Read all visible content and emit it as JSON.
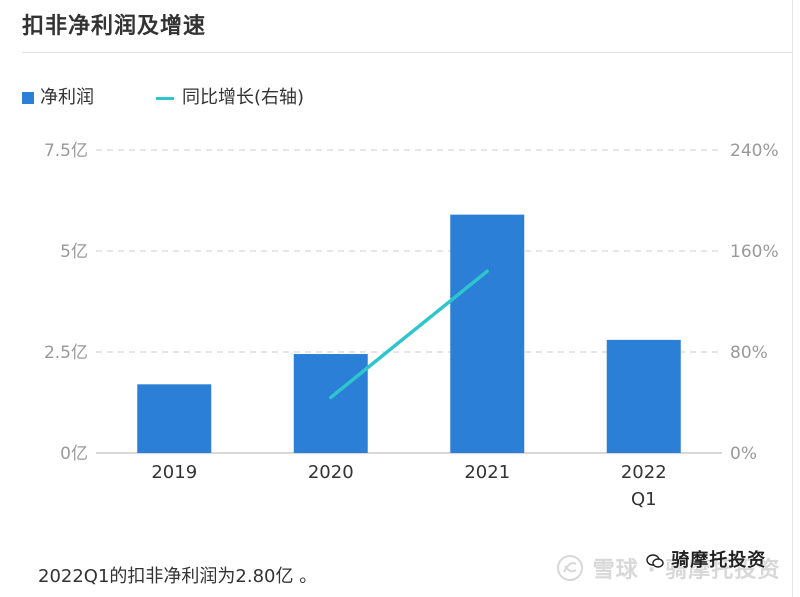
{
  "card": {
    "title": "扣非净利润及增速",
    "footer_text": "2022Q1的扣非净利润为2.80亿 。",
    "watermark_text": "雪球 · 骑摩托投资",
    "watermark_badge": "骑摩托投资"
  },
  "legend": [
    {
      "label": "净利润",
      "kind": "bar",
      "color": "#2b7fd6"
    },
    {
      "label": "同比增长(右轴)",
      "kind": "line",
      "color": "#2ec6cc"
    }
  ],
  "chart_data": {
    "type": "bar",
    "categories": [
      "2019",
      "2020",
      "2021",
      "2022\nQ1"
    ],
    "category_lines": [
      [
        "2019"
      ],
      [
        "2020"
      ],
      [
        "2021"
      ],
      [
        "2022",
        "Q1"
      ]
    ],
    "series": [
      {
        "name": "净利润",
        "type": "bar",
        "axis": "left",
        "color": "#2b7fd6",
        "values": [
          1.7,
          2.45,
          5.9,
          2.8
        ]
      },
      {
        "name": "同比增长(右轴)",
        "type": "line",
        "axis": "right",
        "color": "#2ec6cc",
        "values": [
          null,
          44,
          144,
          null
        ]
      }
    ],
    "y_left": {
      "ticks": [
        "0亿",
        "2.5亿",
        "5亿",
        "7.5亿"
      ],
      "tick_values": [
        0,
        2.5,
        5,
        7.5
      ],
      "ylim": [
        0,
        7.5
      ]
    },
    "y_right": {
      "ticks": [
        "0%",
        "80%",
        "160%",
        "240%"
      ],
      "tick_values": [
        0,
        80,
        160,
        240
      ],
      "ylim": [
        0,
        240
      ]
    },
    "grid": "dashed",
    "legend_position": "top-left"
  }
}
